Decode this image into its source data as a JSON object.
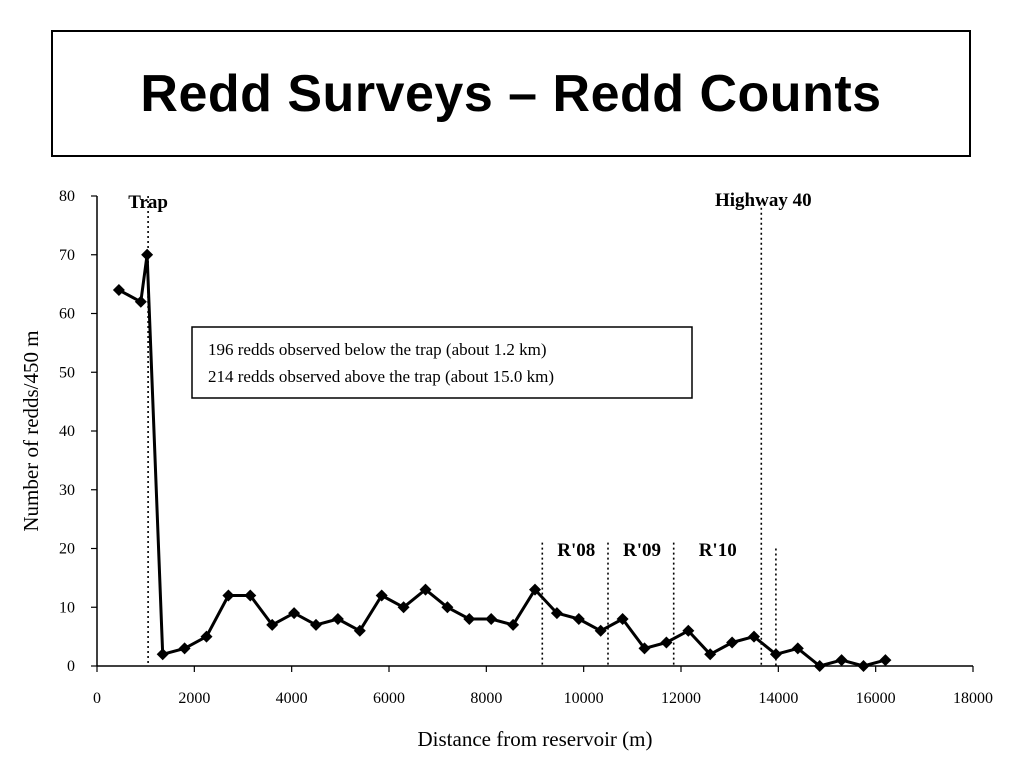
{
  "slide": {
    "title": "Redd Surveys – Redd Counts"
  },
  "chart_data": {
    "type": "line",
    "title": "",
    "xlabel": "Distance from reservoir (m)",
    "ylabel": "Number of redds/450 m",
    "xlim": [
      0,
      18000
    ],
    "ylim": [
      0,
      80
    ],
    "x_ticks": [
      0,
      2000,
      4000,
      6000,
      8000,
      10000,
      12000,
      14000,
      16000,
      18000
    ],
    "y_ticks": [
      0,
      10,
      20,
      30,
      40,
      50,
      60,
      70,
      80
    ],
    "grid": false,
    "legend": "none",
    "series": [
      {
        "color": "#000000",
        "marker": "diamond",
        "points": [
          {
            "x": 450,
            "y": 64
          },
          {
            "x": 900,
            "y": 62
          },
          {
            "x": 1030,
            "y": 70
          },
          {
            "x": 1350,
            "y": 2
          },
          {
            "x": 1800,
            "y": 3
          },
          {
            "x": 2250,
            "y": 5
          },
          {
            "x": 2700,
            "y": 12
          },
          {
            "x": 3150,
            "y": 12
          },
          {
            "x": 3600,
            "y": 7
          },
          {
            "x": 4050,
            "y": 9
          },
          {
            "x": 4500,
            "y": 7
          },
          {
            "x": 4950,
            "y": 8
          },
          {
            "x": 5400,
            "y": 6
          },
          {
            "x": 5850,
            "y": 12
          },
          {
            "x": 6300,
            "y": 10
          },
          {
            "x": 6750,
            "y": 13
          },
          {
            "x": 7200,
            "y": 10
          },
          {
            "x": 7650,
            "y": 8
          },
          {
            "x": 8100,
            "y": 8
          },
          {
            "x": 8550,
            "y": 7
          },
          {
            "x": 9000,
            "y": 13
          },
          {
            "x": 9450,
            "y": 9
          },
          {
            "x": 9900,
            "y": 8
          },
          {
            "x": 10350,
            "y": 6
          },
          {
            "x": 10800,
            "y": 8
          },
          {
            "x": 11250,
            "y": 3
          },
          {
            "x": 11700,
            "y": 4
          },
          {
            "x": 12150,
            "y": 6
          },
          {
            "x": 12600,
            "y": 2
          },
          {
            "x": 13050,
            "y": 4
          },
          {
            "x": 13500,
            "y": 5
          },
          {
            "x": 13950,
            "y": 2
          },
          {
            "x": 14400,
            "y": 3
          },
          {
            "x": 14850,
            "y": 0
          },
          {
            "x": 15300,
            "y": 1
          },
          {
            "x": 15750,
            "y": 0
          },
          {
            "x": 16200,
            "y": 1
          }
        ]
      }
    ],
    "reference_lines": [
      {
        "x": 1050,
        "y_top": 80,
        "label": "Trap"
      },
      {
        "x": 9150,
        "y_top": 21,
        "label": "R'08"
      },
      {
        "x": 10500,
        "y_top": 21,
        "label": "R'09"
      },
      {
        "x": 11850,
        "y_top": 21,
        "label": "R'10"
      },
      {
        "x": 13650,
        "y_top": 78,
        "label": "Highway 40"
      },
      {
        "x": 13950,
        "y_top": 20,
        "label": ""
      }
    ],
    "annotations": [
      "196 redds observed below the trap (about 1.2 km)",
      "214 redds observed above the trap (about 15.0 km)"
    ]
  }
}
